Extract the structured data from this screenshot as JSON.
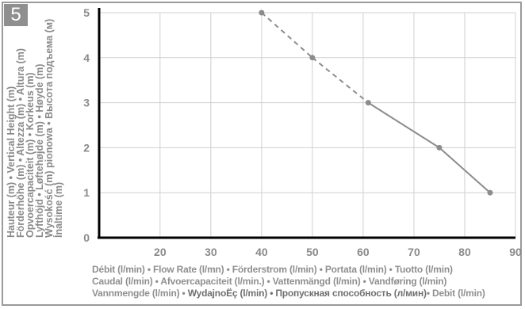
{
  "badge": "5",
  "chart_data": {
    "type": "line",
    "x": [
      40,
      50,
      61,
      75,
      85
    ],
    "y": [
      5,
      4,
      3,
      2,
      1
    ],
    "dashed_until_index": 2,
    "xlim": [
      8,
      90
    ],
    "ylim": [
      0,
      5
    ],
    "xticks": [
      "20",
      "30",
      "40",
      "50",
      "60",
      "70",
      "80",
      "90"
    ],
    "yticks": [
      "0",
      "1",
      "2",
      "3",
      "4",
      "5"
    ],
    "grid": true,
    "colors": {
      "line": "#8c8c8c",
      "grid": "#d0d0d0",
      "axis": "#000000"
    },
    "ylabel_lines": [
      "Hauteur (m) • Vertical Height (m)",
      "Förderhöhe (m) • Altezza (m) • Altura (m)",
      "Opvoercapaciteit (m) • Korkeus (m)",
      "Lyfthöjd • Løftehøjde (m) • Høyde (m)",
      "Wysokość (m) pionowa • Высота подъема (м)",
      "İnaltime (m)"
    ],
    "xlabel_lines": [
      "Débit (l/min) • Flow Rate (l/mn) • Förderstrom (l/min) • Portata (l/min) • Tuotto (l/min)",
      "Caudal (l/min) • Afvoercapaciteit (l/min.) • Vattenmängd (l/min) • Vandføring (l/min)"
    ],
    "xlabel_line3": {
      "a": "Vannmengde (l/min) • ",
      "b": "WydajnoËç (l/min) • Пропускная способность (л/мин)",
      "c": "• Debit (l/min)"
    }
  }
}
